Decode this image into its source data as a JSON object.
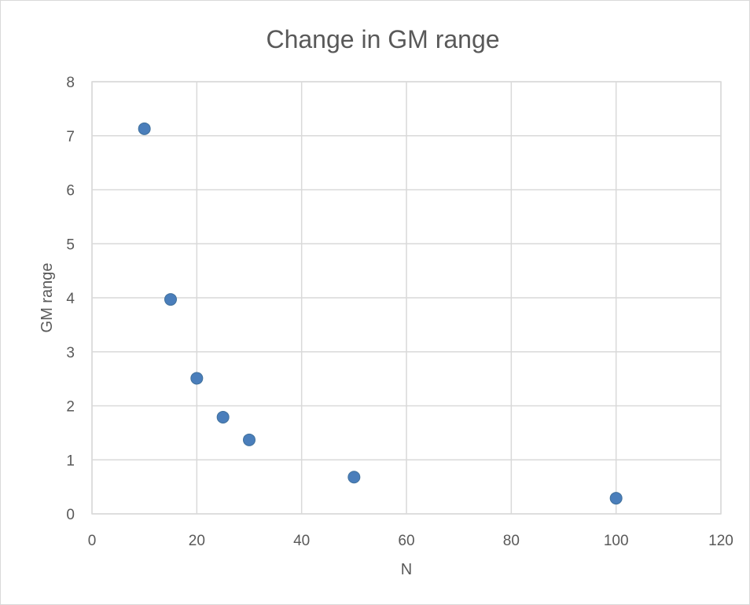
{
  "chart_data": {
    "type": "scatter",
    "title": "Change in GM range",
    "xlabel": "N",
    "ylabel": "GM range",
    "xlim": [
      0,
      120
    ],
    "ylim": [
      0,
      8
    ],
    "xticks": [
      0,
      20,
      40,
      60,
      80,
      100,
      120
    ],
    "yticks": [
      0,
      1,
      2,
      3,
      4,
      5,
      6,
      7,
      8
    ],
    "grid": true,
    "legend": "none",
    "series": [
      {
        "color": "#4a7ebb",
        "points": [
          {
            "x": 10,
            "y": 7.13
          },
          {
            "x": 15,
            "y": 3.97
          },
          {
            "x": 20,
            "y": 2.51
          },
          {
            "x": 25,
            "y": 1.79
          },
          {
            "x": 30,
            "y": 1.37
          },
          {
            "x": 50,
            "y": 0.68
          },
          {
            "x": 100,
            "y": 0.29
          }
        ]
      }
    ]
  }
}
